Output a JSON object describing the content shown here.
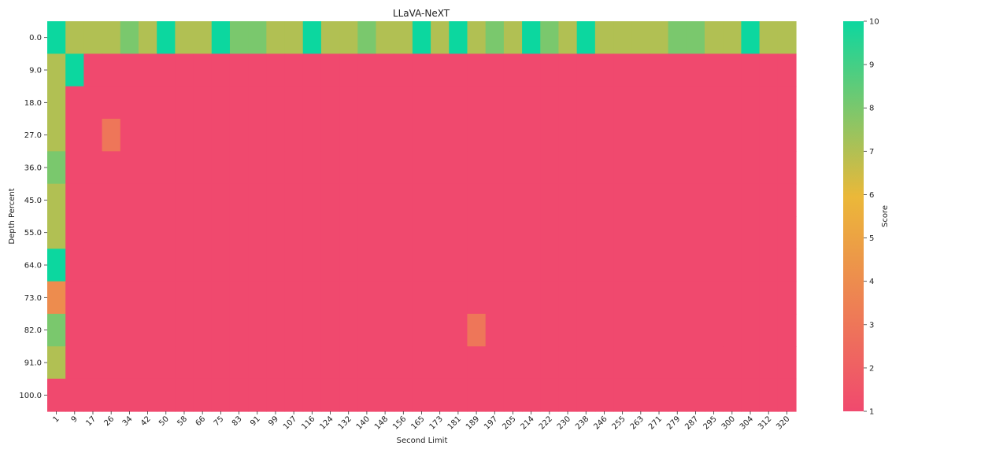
{
  "chart_data": {
    "type": "heatmap",
    "title": "LLaVA-NeXT",
    "xlabel": "Second Limit",
    "ylabel": "Depth Percent",
    "x_categories": [
      "1",
      "9",
      "17",
      "26",
      "34",
      "42",
      "50",
      "58",
      "66",
      "75",
      "83",
      "91",
      "99",
      "107",
      "116",
      "124",
      "132",
      "140",
      "148",
      "156",
      "165",
      "173",
      "181",
      "189",
      "197",
      "205",
      "214",
      "222",
      "230",
      "238",
      "246",
      "255",
      "263",
      "271",
      "279",
      "287",
      "295",
      "300",
      "304",
      "312",
      "320"
    ],
    "y_categories": [
      "0.0",
      "9.0",
      "18.0",
      "27.0",
      "36.0",
      "45.0",
      "55.0",
      "64.0",
      "73.0",
      "82.0",
      "91.0",
      "100.0"
    ],
    "values": [
      [
        10,
        7,
        7,
        7,
        8,
        7,
        10,
        7,
        7,
        10,
        8,
        8,
        7,
        7,
        10,
        7,
        7,
        8,
        7,
        7,
        10,
        7,
        10,
        7,
        8,
        7,
        10,
        8,
        7,
        10,
        7,
        7,
        7,
        7,
        8,
        8,
        7,
        7,
        10,
        7,
        7
      ],
      [
        7,
        10,
        1,
        1,
        1,
        1,
        1,
        1,
        1,
        1,
        1,
        1,
        1,
        1,
        1,
        1,
        1,
        1,
        1,
        1,
        1,
        1,
        1,
        1,
        1,
        1,
        1,
        1,
        1,
        1,
        1,
        1,
        1,
        1,
        1,
        1,
        1,
        1,
        1,
        1,
        1
      ],
      [
        7,
        1,
        1,
        1,
        1,
        1,
        1,
        1,
        1,
        1,
        1,
        1,
        1,
        1,
        1,
        1,
        1,
        1,
        1,
        1,
        1,
        1,
        1,
        1,
        1,
        1,
        1,
        1,
        1,
        1,
        1,
        1,
        1,
        1,
        1,
        1,
        1,
        1,
        1,
        1,
        1
      ],
      [
        7,
        1,
        1,
        3,
        1,
        1,
        1,
        1,
        1,
        1,
        1,
        1,
        1,
        1,
        1,
        1,
        1,
        1,
        1,
        1,
        1,
        1,
        1,
        1,
        1,
        1,
        1,
        1,
        1,
        1,
        1,
        1,
        1,
        1,
        1,
        1,
        1,
        1,
        1,
        1,
        1
      ],
      [
        8,
        1,
        1,
        1,
        1,
        1,
        1,
        1,
        1,
        1,
        1,
        1,
        1,
        1,
        1,
        1,
        1,
        1,
        1,
        1,
        1,
        1,
        1,
        1,
        1,
        1,
        1,
        1,
        1,
        1,
        1,
        1,
        1,
        1,
        1,
        1,
        1,
        1,
        1,
        1,
        1
      ],
      [
        7,
        1,
        1,
        1,
        1,
        1,
        1,
        1,
        1,
        1,
        1,
        1,
        1,
        1,
        1,
        1,
        1,
        1,
        1,
        1,
        1,
        1,
        1,
        1,
        1,
        1,
        1,
        1,
        1,
        1,
        1,
        1,
        1,
        1,
        1,
        1,
        1,
        1,
        1,
        1,
        1
      ],
      [
        7,
        1,
        1,
        1,
        1,
        1,
        1,
        1,
        1,
        1,
        1,
        1,
        1,
        1,
        1,
        1,
        1,
        1,
        1,
        1,
        1,
        1,
        1,
        1,
        1,
        1,
        1,
        1,
        1,
        1,
        1,
        1,
        1,
        1,
        1,
        1,
        1,
        1,
        1,
        1,
        1
      ],
      [
        10,
        1,
        1,
        1,
        1,
        1,
        1,
        1,
        1,
        1,
        1,
        1,
        1,
        1,
        1,
        1,
        1,
        1,
        1,
        1,
        1,
        1,
        1,
        1,
        1,
        1,
        1,
        1,
        1,
        1,
        1,
        1,
        1,
        1,
        1,
        1,
        1,
        1,
        1,
        1,
        1
      ],
      [
        4,
        1,
        1,
        1,
        1,
        1,
        1,
        1,
        1,
        1,
        1,
        1,
        1,
        1,
        1,
        1,
        1,
        1,
        1,
        1,
        1,
        1,
        1,
        1,
        1,
        1,
        1,
        1,
        1,
        1,
        1,
        1,
        1,
        1,
        1,
        1,
        1,
        1,
        1,
        1,
        1
      ],
      [
        8,
        1,
        1,
        1,
        1,
        1,
        1,
        1,
        1,
        1,
        1,
        1,
        1,
        1,
        1,
        1,
        1,
        1,
        1,
        1,
        1,
        1,
        1,
        3,
        1,
        1,
        1,
        1,
        1,
        1,
        1,
        1,
        1,
        1,
        1,
        1,
        1,
        1,
        1,
        1,
        1
      ],
      [
        7,
        1,
        1,
        1,
        1,
        1,
        1,
        1,
        1,
        1,
        1,
        1,
        1,
        1,
        1,
        1,
        1,
        1,
        1,
        1,
        1,
        1,
        1,
        1,
        1,
        1,
        1,
        1,
        1,
        1,
        1,
        1,
        1,
        1,
        1,
        1,
        1,
        1,
        1,
        1,
        1
      ],
      [
        1,
        1,
        1,
        1,
        1,
        1,
        1,
        1,
        1,
        1,
        1,
        1,
        1,
        1,
        1,
        1,
        1,
        1,
        1,
        1,
        1,
        1,
        1,
        1,
        1,
        1,
        1,
        1,
        1,
        1,
        1,
        1,
        1,
        1,
        1,
        1,
        1,
        1,
        1,
        1,
        1
      ]
    ],
    "colorbar": {
      "label": "Score",
      "min": 1,
      "max": 10,
      "ticks": [
        "1",
        "2",
        "3",
        "4",
        "5",
        "6",
        "7",
        "8",
        "9",
        "10"
      ],
      "colors": [
        "#F0496E",
        "#EBB839",
        "#0CD79F"
      ]
    }
  }
}
